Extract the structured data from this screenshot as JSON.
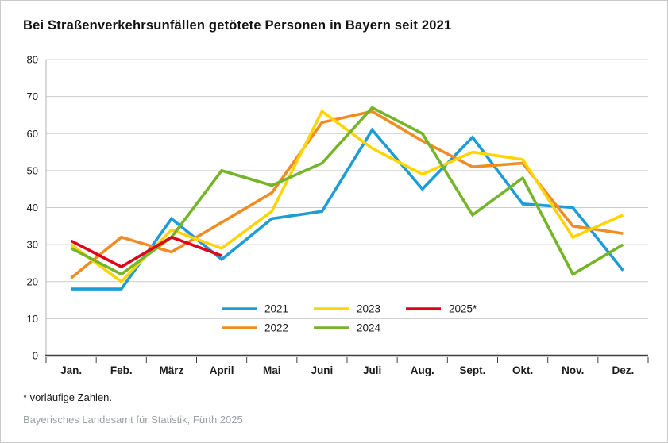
{
  "title": "Bei Straßenverkehrsunfällen getötete Personen in Bayern seit 2021",
  "footnote": "* vorläufige Zahlen.",
  "source": "Bayerisches Landesamt für Statistik, Fürth 2025",
  "colors": {
    "grid": "#cccccc",
    "axis": "#3f3f3f",
    "left_axis": "#b3b3b3",
    "text": "#1a1a1a",
    "source_text": "#9aa0a4"
  },
  "chart_data": {
    "type": "line",
    "title": "Bei Straßenverkehrsunfällen getötete Personen in Bayern seit 2021",
    "xlabel": "",
    "ylabel": "",
    "categories": [
      "Jan.",
      "Feb.",
      "März",
      "April",
      "Mai",
      "Juni",
      "Juli",
      "Aug.",
      "Sept.",
      "Okt.",
      "Nov.",
      "Dez."
    ],
    "ylim": [
      0,
      80
    ],
    "yticks": [
      0,
      10,
      20,
      30,
      40,
      50,
      60,
      70,
      80
    ],
    "grid": true,
    "legend_position": "inside-bottom-center",
    "series": [
      {
        "name": "2021",
        "color": "#1e9cd7",
        "values": [
          18,
          18,
          37,
          26,
          37,
          39,
          61,
          45,
          59,
          41,
          40,
          23
        ]
      },
      {
        "name": "2022",
        "color": "#f08c21",
        "values": [
          21,
          32,
          28,
          36,
          44,
          63,
          66,
          58,
          51,
          52,
          35,
          33
        ]
      },
      {
        "name": "2023",
        "color": "#ffd400",
        "values": [
          30,
          20,
          34,
          29,
          39,
          66,
          56,
          49,
          55,
          53,
          32,
          38
        ]
      },
      {
        "name": "2024",
        "color": "#74b52a",
        "values": [
          29,
          22,
          32,
          50,
          46,
          52,
          67,
          60,
          38,
          48,
          22,
          30
        ]
      },
      {
        "name": "2025*",
        "color": "#e2001a",
        "values": [
          31,
          24,
          32,
          27,
          null,
          null,
          null,
          null,
          null,
          null,
          null,
          null
        ]
      }
    ]
  }
}
